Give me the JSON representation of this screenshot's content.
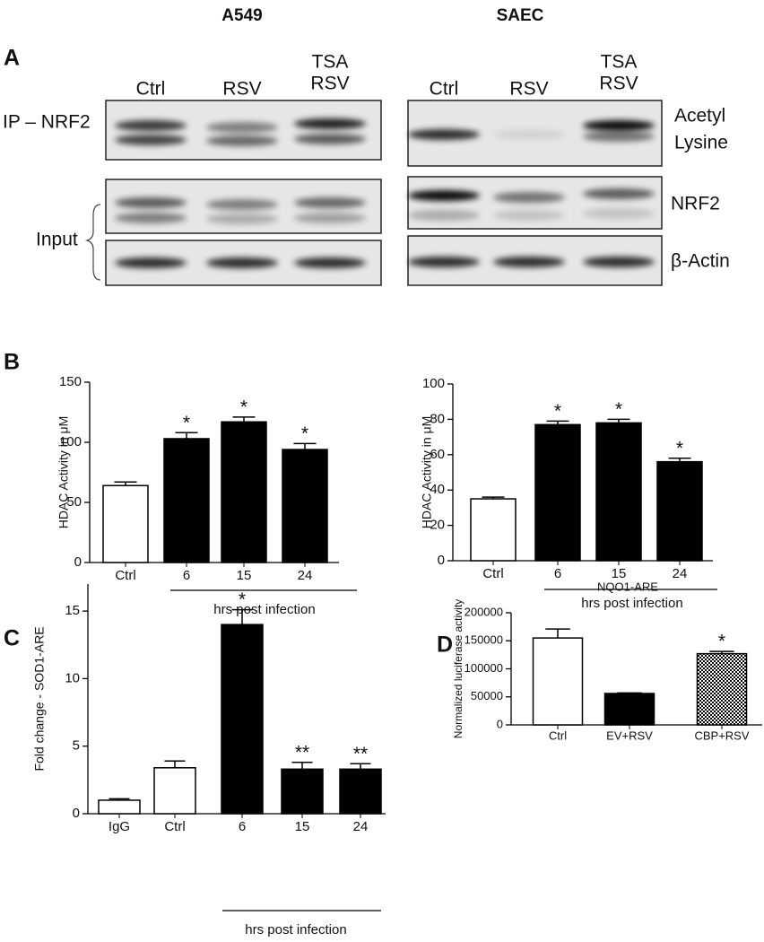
{
  "blot": {
    "panel": "A",
    "cell_lines": [
      "A549",
      "SAEC"
    ],
    "lanes": [
      [
        "Ctrl"
      ],
      [
        "RSV"
      ],
      [
        "TSA",
        "RSV"
      ]
    ],
    "ip_label": "IP – NRF2",
    "acetyl_label": [
      "Acetyl",
      "Lysine"
    ],
    "nrf2_label": "NRF2",
    "actin_label": "β-Actin",
    "input_label": "Input"
  },
  "chart_data": [
    {
      "type": "bar",
      "panel": "B",
      "ylabel": "HDAC Activity in μM",
      "xlabel": "hrs post infection",
      "categories": [
        "Ctrl",
        "6",
        "15",
        "24"
      ],
      "values": [
        64,
        103,
        117,
        94
      ],
      "errors": [
        3,
        5,
        4,
        5
      ],
      "annotations": [
        null,
        "*",
        "*",
        "*"
      ],
      "colors": [
        "#ffffff",
        "#000000",
        "#000000",
        "#000000"
      ],
      "ylim": [
        0,
        150
      ],
      "yticks": [
        0,
        50,
        100,
        150
      ]
    },
    {
      "type": "bar",
      "ylabel": "HDAC Activity in μM",
      "xlabel": "hrs post infection",
      "categories": [
        "Ctrl",
        "6",
        "15",
        "24"
      ],
      "values": [
        35,
        77,
        78,
        56
      ],
      "errors": [
        1,
        2,
        2,
        2
      ],
      "annotations": [
        null,
        "*",
        "*",
        "*"
      ],
      "colors": [
        "#ffffff",
        "#000000",
        "#000000",
        "#000000"
      ],
      "ylim": [
        0,
        100
      ],
      "yticks": [
        0,
        20,
        40,
        60,
        80,
        100
      ]
    },
    {
      "type": "bar",
      "panel": "C",
      "ylabel": "Fold change - SOD1-ARE",
      "xlabel": "hrs post infection",
      "categories": [
        "IgG",
        "Ctrl",
        "6",
        "15",
        "24"
      ],
      "values": [
        1,
        3.4,
        14,
        3.3,
        3.3
      ],
      "errors": [
        0.1,
        0.5,
        1.1,
        0.5,
        0.4
      ],
      "annotations": [
        null,
        null,
        "*",
        "**",
        "**"
      ],
      "colors": [
        "#ffffff",
        "#ffffff",
        "#000000",
        "#000000",
        "#000000"
      ],
      "ylim": [
        0,
        17
      ],
      "yticks": [
        0,
        5,
        10,
        15
      ]
    },
    {
      "type": "bar",
      "panel": "D",
      "title": "NQO1-ARE",
      "ylabel": "Normalized luciferase activity",
      "categories": [
        "Ctrl",
        "EV+RSV",
        "CBP+RSV"
      ],
      "values": [
        155000,
        56000,
        127000
      ],
      "errors": [
        16000,
        1000,
        4000
      ],
      "annotations": [
        null,
        null,
        "*"
      ],
      "colors": [
        "#ffffff",
        "#000000",
        "#999999"
      ],
      "ylim": [
        0,
        200000
      ],
      "yticks": [
        0,
        50000,
        100000,
        150000,
        200000
      ]
    }
  ]
}
